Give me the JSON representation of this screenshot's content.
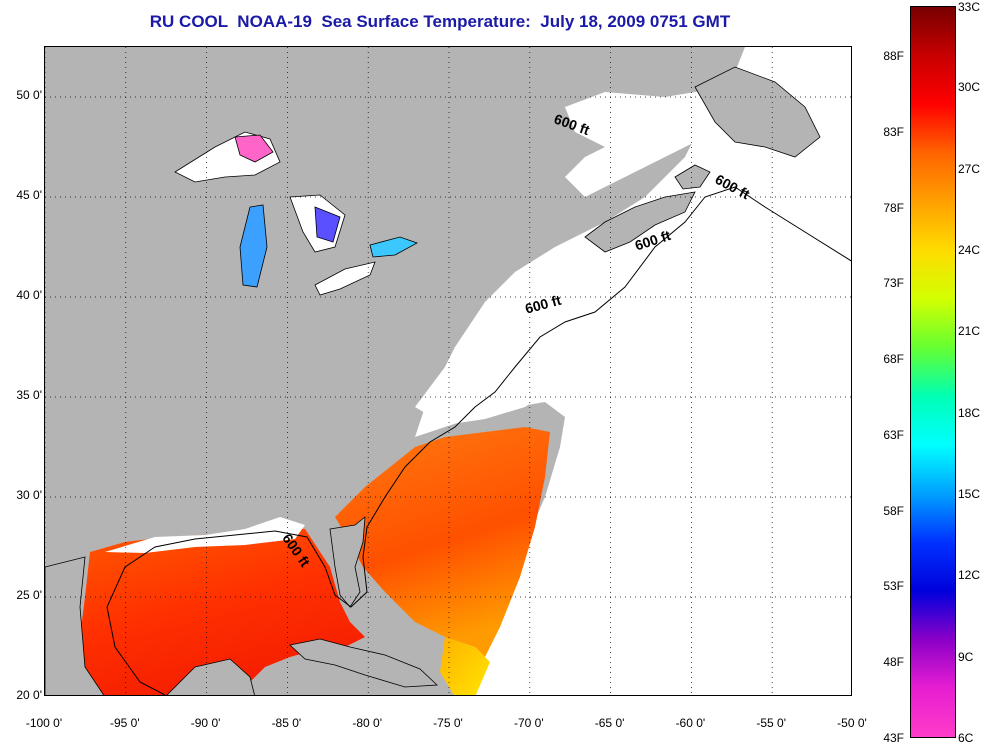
{
  "title": "RU COOL  NOAA-19  Sea Surface Temperature:  July 18, 2009 0751 GMT",
  "map": {
    "lon_range": [
      -100,
      -50
    ],
    "lat_range": [
      20,
      52.5
    ],
    "lat_ticks": [
      "50 0'",
      "45 0'",
      "40 0'",
      "35 0'",
      "30 0'",
      "25 0'",
      "20 0'"
    ],
    "lat_values": [
      50,
      45,
      40,
      35,
      30,
      25,
      20
    ],
    "lon_ticks": [
      "-100 0'",
      "-95 0'",
      "-90 0'",
      "-85 0'",
      "-80 0'",
      "-75 0'",
      "-70 0'",
      "-65 0'",
      "-60 0'",
      "-55 0'",
      "-50 0'"
    ],
    "lon_values": [
      -100,
      -95,
      -90,
      -85,
      -80,
      -75,
      -70,
      -65,
      -60,
      -55,
      -50
    ],
    "grid": true,
    "land_color": "#b4b4b4",
    "cloud_color": "#ffffff",
    "isobath_labels": [
      {
        "text": "600 ft",
        "lon": -67.5,
        "lat": 48.4,
        "angle": 20
      },
      {
        "text": "600 ft",
        "lon": -57.6,
        "lat": 45.3,
        "angle": 28
      },
      {
        "text": "600 ft",
        "lon": -62.3,
        "lat": 42.6,
        "angle": -18
      },
      {
        "text": "600 ft",
        "lon": -69.1,
        "lat": 39.4,
        "angle": -15
      },
      {
        "text": "600 ft",
        "lon": -84.7,
        "lat": 27.2,
        "angle": 55
      }
    ]
  },
  "colorbar": {
    "celsius_labels": [
      "33C",
      "30C",
      "27C",
      "24C",
      "21C",
      "18C",
      "15C",
      "12C",
      "9C",
      "6C"
    ],
    "fahrenheit_labels": [
      "88F",
      "83F",
      "78F",
      "73F",
      "68F",
      "63F",
      "58F",
      "53F",
      "48F",
      "43F"
    ],
    "colors_top_to_bottom": [
      "#780000",
      "#c80000",
      "#ff0000",
      "#ff6400",
      "#ffa000",
      "#ffdc00",
      "#d2ff00",
      "#64ff32",
      "#00ffb4",
      "#00ffff",
      "#00a0ff",
      "#0032ff",
      "#0000dc",
      "#8c00c8",
      "#e61ed2",
      "#ff3cc8"
    ]
  }
}
